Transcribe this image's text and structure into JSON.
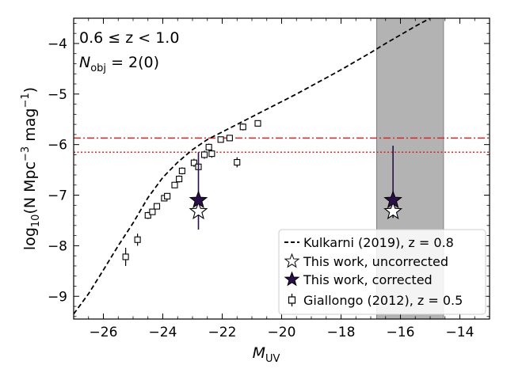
{
  "chart_data": {
    "type": "scatter",
    "annotations": {
      "redshift_range": "0.6 ≤ z < 1.0",
      "nobj_prefix": "N",
      "nobj_sub": "obj",
      "nobj_value": " = 2(0)"
    },
    "xlabel": {
      "main": "M",
      "sub": "UV"
    },
    "ylabel": {
      "prefix": "log",
      "sub": "10",
      "body": "(N Mpc",
      "sup1": "−3",
      "mid": " mag",
      "sup2": "−1",
      "end": ")"
    },
    "xlim": [
      -27,
      -13
    ],
    "ylim": [
      -9.45,
      -3.5
    ],
    "x_ticks": [
      -26,
      -24,
      -22,
      -20,
      -18,
      -16,
      -14
    ],
    "x_tick_labels": [
      "−26",
      "−24",
      "−22",
      "−20",
      "−18",
      "−16",
      "−14"
    ],
    "y_ticks": [
      -9,
      -8,
      -7,
      -6,
      -5,
      -4
    ],
    "y_tick_labels": [
      "−9",
      "−8",
      "−7",
      "−6",
      "−5",
      "−4"
    ],
    "shaded_region": {
      "x": [
        -16.8,
        -14.55
      ],
      "color": "#b3b3b3"
    },
    "hlines": [
      {
        "y": -5.87,
        "style": "dashdot",
        "color": "#d62728"
      },
      {
        "y": -6.15,
        "style": "dotted",
        "color": "#d62728"
      }
    ],
    "legend_position": "lower-right",
    "series": [
      {
        "name": "Kulkarni (2019), z = 0.8",
        "style": "dashed-line",
        "color": "#000000",
        "x": [
          -27,
          -26.5,
          -26,
          -25.5,
          -25,
          -24.5,
          -24,
          -23.5,
          -23,
          -22.5,
          -22,
          -21.5,
          -21,
          -20.5,
          -20,
          -19.5,
          -19,
          -18.5,
          -18,
          -17.5,
          -17,
          -16.5,
          -16,
          -15.5,
          -15
        ],
        "y": [
          -9.35,
          -8.95,
          -8.48,
          -8.0,
          -7.55,
          -7.05,
          -6.65,
          -6.35,
          -6.1,
          -5.9,
          -5.75,
          -5.6,
          -5.45,
          -5.3,
          -5.15,
          -5.0,
          -4.84,
          -4.68,
          -4.52,
          -4.35,
          -4.18,
          -4.0,
          -3.83,
          -3.66,
          -3.5
        ]
      },
      {
        "name": "This work, uncorrected",
        "style": "open-star",
        "color": "#000000",
        "x": [
          -22.8,
          -16.25
        ],
        "y": [
          -7.32,
          -7.32
        ]
      },
      {
        "name": "This work, corrected",
        "style": "filled-star",
        "color": "#2a0f4a",
        "x": [
          -22.8,
          -16.25
        ],
        "y": [
          -7.1,
          -7.1
        ],
        "yerr_low": [
          -7.68,
          -7.45
        ],
        "yerr_high": [
          -6.15,
          -6.02
        ]
      },
      {
        "name": "Giallongo (2012), z = 0.5",
        "style": "open-square-errorbar",
        "color": "#000000",
        "x": [
          -25.25,
          -24.85,
          -24.5,
          -24.35,
          -24.2,
          -23.95,
          -23.85,
          -23.6,
          -23.45,
          -23.35,
          -22.95,
          -22.8,
          -22.6,
          -22.45,
          -22.35,
          -22.05,
          -21.75,
          -21.5,
          -21.3,
          -20.8
        ],
        "y": [
          -8.22,
          -7.88,
          -7.4,
          -7.33,
          -7.22,
          -7.06,
          -7.02,
          -6.8,
          -6.68,
          -6.52,
          -6.36,
          -6.44,
          -6.2,
          -6.05,
          -6.18,
          -5.9,
          -5.87,
          -6.35,
          -5.65,
          -5.58
        ],
        "yerr": [
          0.18,
          0.12,
          0.07,
          0.06,
          0.06,
          0.06,
          0.06,
          0.06,
          0.07,
          0.07,
          0.08,
          0.08,
          0.08,
          0.07,
          0.08,
          0.06,
          0.06,
          0.1,
          0.07,
          0.06
        ]
      }
    ]
  }
}
